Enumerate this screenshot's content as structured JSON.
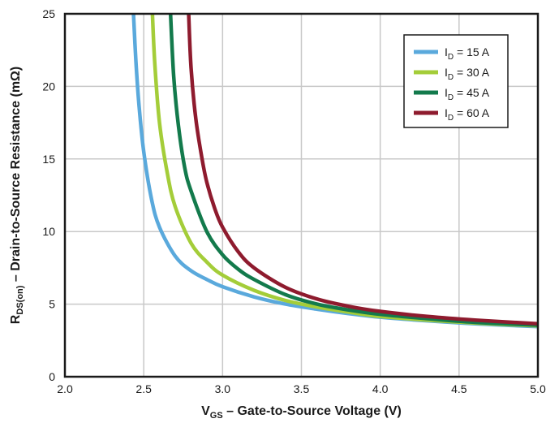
{
  "chart_data": {
    "type": "line",
    "xlabel": {
      "main": "V",
      "sub": "GS",
      "rest": " – Gate-to-Source Voltage (V)"
    },
    "ylabel": {
      "main": "R",
      "sub": "DS(on)",
      "rest": " – Drain-to-Source Resistance (mΩ)"
    },
    "xlim": [
      2.0,
      5.0
    ],
    "ylim": [
      0,
      25
    ],
    "x_ticks": [
      "2.0",
      "2.5",
      "3.0",
      "3.5",
      "4.0",
      "4.5",
      "5.0"
    ],
    "y_ticks": [
      "0",
      "5",
      "10",
      "15",
      "20",
      "25"
    ],
    "grid": true,
    "legend_position": "top-right",
    "series": [
      {
        "name": "I_D = 15 A",
        "label_main": "I",
        "label_sub": "D",
        "label_rest": " = 15 A",
        "color": "#5aa9dc",
        "x": [
          2.435,
          2.45,
          2.47,
          2.5,
          2.55,
          2.6,
          2.7,
          2.8,
          2.9,
          3.0,
          3.2,
          3.4,
          3.6,
          3.8,
          4.0,
          4.3,
          4.6,
          5.0
        ],
        "y": [
          25.0,
          21.8,
          18.7,
          15.5,
          12.2,
          10.3,
          8.3,
          7.3,
          6.7,
          6.2,
          5.5,
          5.0,
          4.65,
          4.35,
          4.1,
          3.85,
          3.65,
          3.45
        ]
      },
      {
        "name": "I_D = 30 A",
        "label_main": "I",
        "label_sub": "D",
        "label_rest": " = 30 A",
        "color": "#a4cd39",
        "x": [
          2.555,
          2.57,
          2.6,
          2.65,
          2.7,
          2.8,
          2.9,
          3.0,
          3.2,
          3.4,
          3.6,
          3.8,
          4.0,
          4.3,
          4.6,
          5.0
        ],
        "y": [
          25.0,
          21.6,
          17.5,
          14.0,
          11.7,
          9.2,
          7.9,
          7.0,
          5.95,
          5.25,
          4.8,
          4.45,
          4.15,
          3.9,
          3.7,
          3.5
        ]
      },
      {
        "name": "I_D = 45 A",
        "label_main": "I",
        "label_sub": "D",
        "label_rest": " = 45 A",
        "color": "#137a4c",
        "x": [
          2.67,
          2.69,
          2.72,
          2.76,
          2.8,
          2.9,
          3.0,
          3.1,
          3.2,
          3.4,
          3.6,
          3.8,
          4.0,
          4.3,
          4.6,
          5.0
        ],
        "y": [
          25.0,
          20.7,
          17.3,
          14.4,
          12.8,
          10.0,
          8.4,
          7.4,
          6.7,
          5.65,
          5.0,
          4.6,
          4.3,
          4.0,
          3.75,
          3.55
        ]
      },
      {
        "name": "I_D = 60 A",
        "label_main": "I",
        "label_sub": "D",
        "label_rest": " = 60 A",
        "color": "#8e1b2e",
        "x": [
          2.785,
          2.8,
          2.83,
          2.87,
          2.9,
          2.95,
          3.0,
          3.1,
          3.2,
          3.4,
          3.6,
          3.8,
          4.0,
          4.3,
          4.6,
          5.0
        ],
        "y": [
          25.0,
          21.3,
          17.8,
          15.0,
          13.4,
          11.6,
          10.3,
          8.6,
          7.5,
          6.15,
          5.35,
          4.85,
          4.5,
          4.15,
          3.9,
          3.65
        ]
      }
    ]
  }
}
